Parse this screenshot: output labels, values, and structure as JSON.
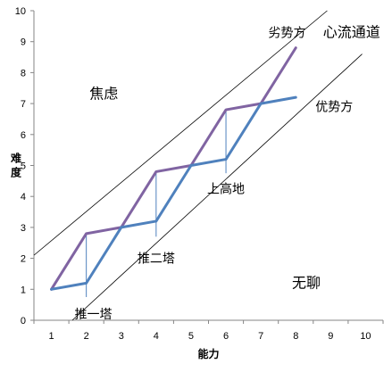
{
  "chart_data": {
    "type": "line",
    "xlabel": "能力",
    "ylabel": "难度",
    "xlim": [
      0,
      10
    ],
    "ylim": [
      0,
      10
    ],
    "x_ticks": [
      "1",
      "2",
      "3",
      "4",
      "5",
      "6",
      "7",
      "8",
      "9",
      "10"
    ],
    "y_ticks": [
      "0",
      "1",
      "2",
      "3",
      "4",
      "5",
      "6",
      "7",
      "8",
      "9",
      "10"
    ],
    "grid": false,
    "legend": "none",
    "series": [
      {
        "color": "#8064a2",
        "points": [
          [
            1,
            1
          ],
          [
            2,
            2.8
          ],
          [
            3,
            3.0
          ],
          [
            4,
            4.8
          ],
          [
            5,
            5.0
          ],
          [
            6,
            6.8
          ],
          [
            7,
            7.0
          ],
          [
            8,
            8.8
          ]
        ]
      },
      {
        "color": "#4f81bd",
        "points": [
          [
            1,
            1
          ],
          [
            2,
            1.2
          ],
          [
            3,
            3.0
          ],
          [
            4,
            3.2
          ],
          [
            5,
            5.0
          ],
          [
            6,
            5.2
          ],
          [
            7,
            7.0
          ],
          [
            8,
            7.2
          ]
        ]
      }
    ],
    "reference_lines": [
      {
        "name": "upper-boundary",
        "color": "#000000",
        "from": [
          0,
          2.1
        ],
        "to": [
          8.4,
          10
        ]
      },
      {
        "name": "lower-boundary",
        "color": "#000000",
        "from": [
          1.1,
          0
        ],
        "to": [
          9.4,
          8.6
        ]
      }
    ],
    "connectors": [
      {
        "x": 2,
        "y1": 0.75,
        "y2": 2.8
      },
      {
        "x": 4,
        "y1": 2.7,
        "y2": 4.8
      },
      {
        "x": 6,
        "y1": 4.75,
        "y2": 6.8
      }
    ],
    "annotations": [
      {
        "text": "劣势方",
        "x": 7.75,
        "y": 9.3,
        "size": "normal"
      },
      {
        "text": "心流通道",
        "x": 9.6,
        "y": 9.3,
        "size": "large"
      },
      {
        "text": "优势方",
        "x": 9.1,
        "y": 6.9,
        "size": "normal"
      },
      {
        "text": "焦虑",
        "x": 2.5,
        "y": 7.3,
        "size": "large"
      },
      {
        "text": "上高地",
        "x": 6.0,
        "y": 4.25,
        "size": "normal"
      },
      {
        "text": "推二塔",
        "x": 4.0,
        "y": 2.0,
        "size": "normal"
      },
      {
        "text": "推一塔",
        "x": 2.2,
        "y": 0.2,
        "size": "normal"
      },
      {
        "text": "无聊",
        "x": 8.3,
        "y": 1.2,
        "size": "large"
      }
    ]
  }
}
